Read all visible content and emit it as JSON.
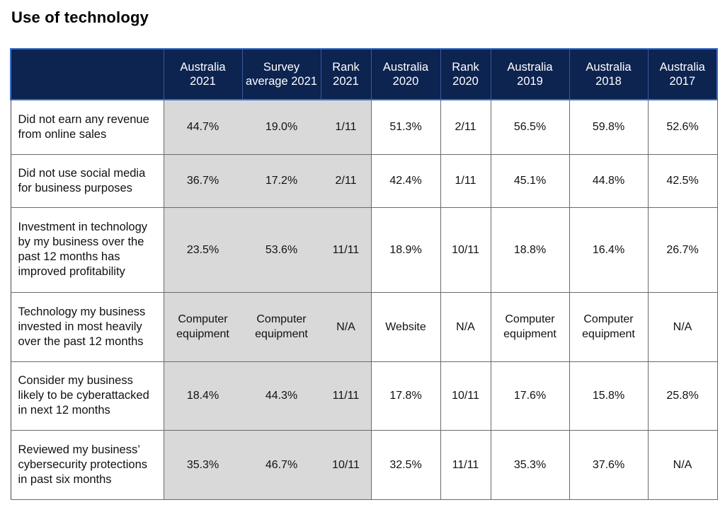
{
  "title": "Use of technology",
  "table": {
    "headers": [
      "",
      "Australia 2021",
      "Survey average 2021",
      "Rank 2021",
      "Australia 2020",
      "Rank 2020",
      "Australia 2019",
      "Australia 2018",
      "Australia 2017"
    ],
    "rows": [
      {
        "label": "Did not earn any revenue from online sales",
        "cells": [
          "44.7%",
          "19.0%",
          "1/11",
          "51.3%",
          "2/11",
          "56.5%",
          "59.8%",
          "52.6%"
        ]
      },
      {
        "label": "Did not use social media for business purposes",
        "cells": [
          "36.7%",
          "17.2%",
          "2/11",
          "42.4%",
          "1/11",
          "45.1%",
          "44.8%",
          "42.5%"
        ]
      },
      {
        "label": "Investment in technology by my business over the past 12 months has improved profitability",
        "cells": [
          "23.5%",
          "53.6%",
          "11/11",
          "18.9%",
          "10/11",
          "18.8%",
          "16.4%",
          "26.7%"
        ]
      },
      {
        "label": "Technology my business invested in most heavily over the past 12 months",
        "cells": [
          "Computer equipment",
          "Computer equipment",
          "N/A",
          "Website",
          "N/A",
          "Computer equipment",
          "Computer equipment",
          "N/A"
        ]
      },
      {
        "label": "Consider my business likely to be cyberattacked in next 12 months",
        "cells": [
          "18.4%",
          "44.3%",
          "11/11",
          "17.8%",
          "10/11",
          "17.6%",
          "15.8%",
          "25.8%"
        ]
      },
      {
        "label": "Reviewed my business’ cybersecurity protections in past six months",
        "cells": [
          "35.3%",
          "46.7%",
          "10/11",
          "32.5%",
          "11/11",
          "35.3%",
          "37.6%",
          "N/A"
        ]
      }
    ]
  },
  "colors": {
    "header_bg": "#0d2350",
    "header_border": "#3a6fc4",
    "highlight_column_bg": "#d9d9d9"
  }
}
